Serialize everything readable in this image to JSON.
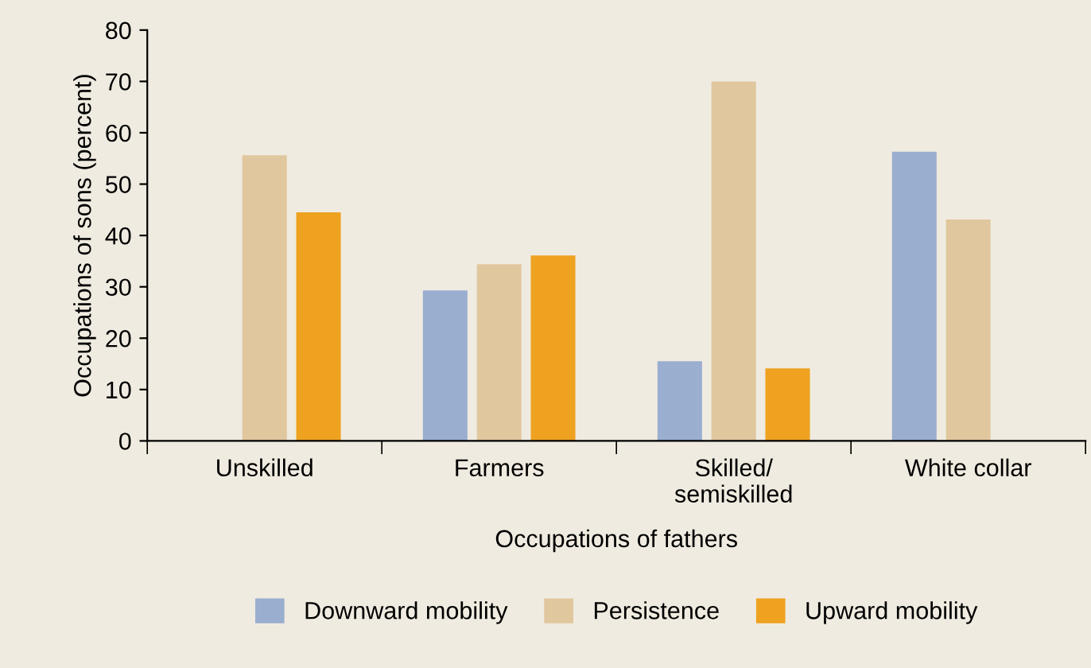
{
  "chart_data": {
    "type": "bar",
    "xlabel": "Occupations of fathers",
    "ylabel": "Occupations of sons (percent)",
    "categories": [
      "Unskilled",
      "Farmers",
      "Skilled/\nsemiskilled",
      "White collar"
    ],
    "series": [
      {
        "name": "Downward mobility",
        "color": "#9aaed0",
        "values": [
          null,
          29.3,
          15.5,
          56.3
        ]
      },
      {
        "name": "Persistence",
        "color": "#e0c79e",
        "values": [
          55.6,
          34.4,
          70,
          43.1
        ]
      },
      {
        "name": "Upward mobility",
        "color": "#eea220",
        "values": [
          44.5,
          36.1,
          14.1,
          null
        ]
      }
    ],
    "ylim": [
      0,
      80
    ],
    "yticks": [
      0,
      10,
      20,
      30,
      40,
      50,
      60,
      70,
      80
    ],
    "grid": false,
    "legend": "bottom"
  }
}
